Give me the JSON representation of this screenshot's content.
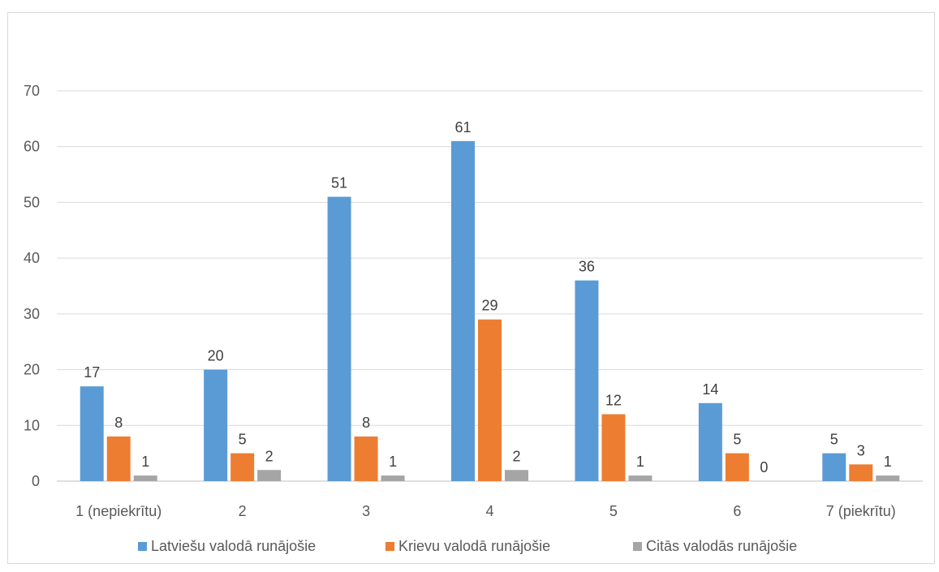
{
  "chart_data": {
    "type": "bar",
    "categories": [
      "1 (nepiekrītu)",
      "2",
      "3",
      "4",
      "5",
      "6",
      "7 (piekrītu)"
    ],
    "series": [
      {
        "name": "Latviešu valodā runājošie",
        "color": "#5b9bd5",
        "values": [
          17,
          20,
          51,
          61,
          36,
          14,
          5
        ]
      },
      {
        "name": "Krievu valodā runājošie",
        "color": "#ed7d31",
        "values": [
          8,
          5,
          8,
          29,
          12,
          5,
          3
        ]
      },
      {
        "name": "Citās valodās runājošie",
        "color": "#a5a5a5",
        "values": [
          1,
          2,
          1,
          2,
          1,
          0,
          1
        ]
      }
    ],
    "yticks": [
      "0",
      "10",
      "20",
      "30",
      "40",
      "50",
      "60",
      "70"
    ],
    "ylim": [
      0,
      70
    ],
    "grid": true,
    "legend_position": "bottom",
    "data_labels": true
  }
}
